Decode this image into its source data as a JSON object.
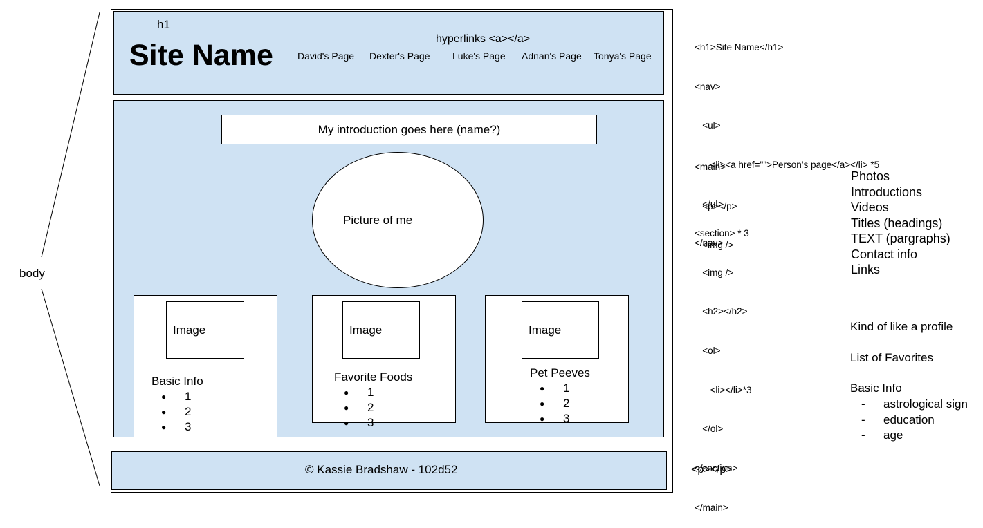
{
  "body_label": "body",
  "header": {
    "h1_tag_label": "h1",
    "site_name": "Site Name",
    "hyperlinks_label": "hyperlinks <a></a>",
    "nav_links": [
      "David's Page",
      "Dexter's Page",
      "Luke's Page",
      "Adnan's Page",
      "Tonya's Page"
    ]
  },
  "main": {
    "intro_text": "My introduction goes here (name?)",
    "picture_text": "Picture of me",
    "cards": [
      {
        "image_label": "Image",
        "title": "Basic Info",
        "items": [
          "1",
          "2",
          "3"
        ]
      },
      {
        "image_label": "Image",
        "title": "Favorite Foods",
        "items": [
          "1",
          "2",
          "3"
        ]
      },
      {
        "image_label": "Image",
        "title": "Pet Peeves",
        "items": [
          "1",
          "2",
          "3"
        ]
      }
    ]
  },
  "footer": {
    "text": "© Kassie Bradshaw - 102d52"
  },
  "code_notes": {
    "header": [
      "<h1>Site Name</h1>",
      "<nav>",
      "   <ul>",
      "      <li><a href=\"\">Person’s page</a></li> *5",
      "   </ul>",
      "</nav>"
    ],
    "main": [
      "<main>",
      "   <p></p>",
      "   <img />"
    ],
    "section": [
      "<section> * 3",
      "   <img />",
      "   <h2></h2>",
      "   <ol>",
      "      <li></li>*3",
      "   </ol>",
      "</section>",
      "</main>"
    ],
    "footer": "<p></p>"
  },
  "side_notes": {
    "content_list": [
      "Photos",
      "Introductions",
      "Videos",
      "Titles (headings)",
      "TEXT (pargraphs)",
      "Contact info",
      "Links"
    ],
    "profile_note": "Kind of like a profile",
    "favorites_note": "List of Favorites",
    "basic_info_title": "Basic Info",
    "basic_info_items": [
      "astrological sign",
      "education",
      "age"
    ]
  },
  "colors": {
    "panel": "#cfe2f3",
    "annotation_red": "#e53935"
  }
}
